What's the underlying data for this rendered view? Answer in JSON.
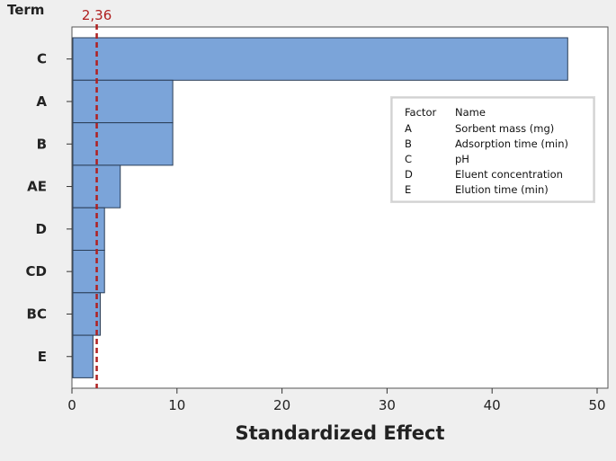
{
  "chart_data": {
    "type": "bar",
    "orientation": "horizontal",
    "categories": [
      "C",
      "A",
      "B",
      "AE",
      "D",
      "CD",
      "BC",
      "E"
    ],
    "values": [
      47.2,
      9.6,
      9.6,
      4.6,
      3.1,
      3.1,
      2.7,
      2.0
    ],
    "xlabel": "Standardized Effect",
    "ylabel": "Term",
    "xlim": [
      0,
      51
    ],
    "xticks": [
      0,
      10,
      20,
      30,
      40,
      50
    ],
    "reference_line": {
      "value": 2.36,
      "label": "2,36",
      "color": "#b02020"
    },
    "bar_color": "#7ba4d9",
    "grid": false,
    "legend": {
      "placement": "right",
      "header": [
        "Factor",
        "Name"
      ],
      "rows": [
        [
          "A",
          "Sorbent mass (mg)"
        ],
        [
          "B",
          "Adsorption time (min)"
        ],
        [
          "C",
          "pH"
        ],
        [
          "D",
          "Eluent concentration"
        ],
        [
          "E",
          "Elution time (min)"
        ]
      ]
    }
  }
}
